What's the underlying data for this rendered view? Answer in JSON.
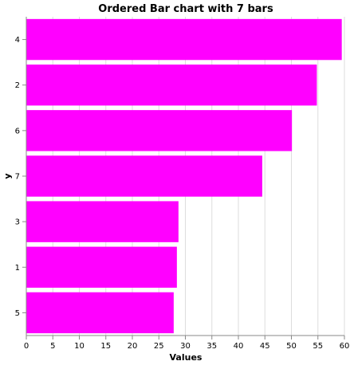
{
  "chart_data": {
    "type": "bar",
    "orientation": "horizontal",
    "title": "Ordered Bar chart with 7 bars",
    "xlabel": "Values",
    "ylabel": "y",
    "categories": [
      "4",
      "2",
      "6",
      "7",
      "3",
      "1",
      "5"
    ],
    "values": [
      59.5,
      54.8,
      50.1,
      44.5,
      28.7,
      28.4,
      27.8
    ],
    "xlim": [
      0,
      60
    ],
    "xticks": [
      0,
      5,
      10,
      15,
      20,
      25,
      30,
      35,
      40,
      45,
      50,
      55,
      60
    ],
    "grid": true,
    "legend": "none",
    "bar_color": "#ff00ff",
    "grid_color": "#dddddd",
    "axis_color": "#888888"
  }
}
